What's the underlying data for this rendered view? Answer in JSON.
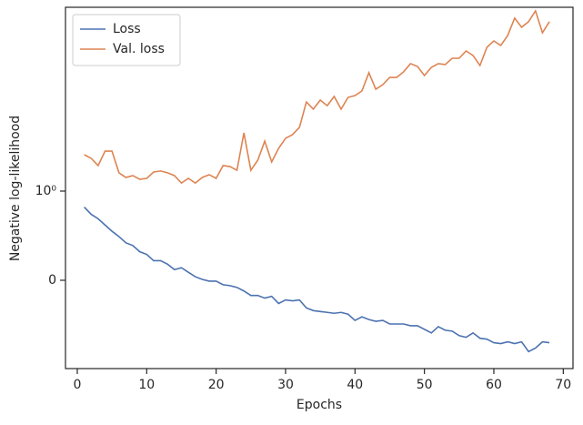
{
  "chart_data": {
    "type": "line",
    "xlabel": "Epochs",
    "ylabel": "Negative log-likelihood",
    "yscale": "symlog",
    "linthresh": 1,
    "x": [
      1,
      2,
      3,
      4,
      5,
      6,
      7,
      8,
      9,
      10,
      11,
      12,
      13,
      14,
      15,
      16,
      17,
      18,
      19,
      20,
      21,
      22,
      23,
      24,
      25,
      26,
      27,
      28,
      29,
      30,
      31,
      32,
      33,
      34,
      35,
      36,
      37,
      38,
      39,
      40,
      41,
      42,
      43,
      44,
      45,
      46,
      47,
      48,
      49,
      50,
      51,
      52,
      53,
      54,
      55,
      56,
      57,
      58,
      59,
      60,
      61,
      62,
      63,
      64,
      65,
      66,
      67,
      68
    ],
    "series": [
      {
        "name": "Loss",
        "color": "#4c72b0",
        "values": [
          0.82,
          0.74,
          0.69,
          0.62,
          0.55,
          0.49,
          0.42,
          0.39,
          0.32,
          0.29,
          0.22,
          0.22,
          0.18,
          0.12,
          0.14,
          0.09,
          0.04,
          0.01,
          -0.01,
          -0.01,
          -0.05,
          -0.06,
          -0.08,
          -0.12,
          -0.17,
          -0.17,
          -0.2,
          -0.18,
          -0.26,
          -0.22,
          -0.23,
          -0.22,
          -0.31,
          -0.34,
          -0.35,
          -0.36,
          -0.37,
          -0.36,
          -0.38,
          -0.45,
          -0.41,
          -0.44,
          -0.46,
          -0.45,
          -0.49,
          -0.49,
          -0.49,
          -0.51,
          -0.51,
          -0.55,
          -0.59,
          -0.52,
          -0.56,
          -0.57,
          -0.62,
          -0.64,
          -0.59,
          -0.65,
          -0.66,
          -0.7,
          -0.71,
          -0.69,
          -0.71,
          -0.69,
          -0.8,
          -0.76,
          -0.69,
          -0.7
        ]
      },
      {
        "name": "Val. loss",
        "color": "#dd8452",
        "values": [
          2.84,
          2.56,
          2.08,
          3.15,
          3.15,
          1.69,
          1.48,
          1.56,
          1.4,
          1.44,
          1.73,
          1.78,
          1.69,
          1.56,
          1.26,
          1.44,
          1.26,
          1.48,
          1.6,
          1.44,
          2.08,
          2.02,
          1.82,
          5.32,
          1.82,
          2.43,
          4.2,
          2.31,
          3.41,
          4.55,
          5.05,
          6.22,
          12.9,
          10.5,
          13.6,
          11.6,
          15.1,
          10.5,
          14.7,
          15.5,
          17.7,
          29.8,
          18.6,
          21.2,
          26.1,
          26.1,
          30.6,
          38.7,
          35.7,
          27.5,
          34.8,
          38.7,
          37.7,
          45.2,
          45.2,
          55.7,
          48.9,
          36.7,
          61.8,
          74.3,
          65.2,
          86.9,
          143,
          110,
          129,
          176,
          93.9,
          129
        ]
      }
    ],
    "xlim": [
      -1.7,
      71.4
    ],
    "xticks": [
      0,
      10,
      20,
      30,
      40,
      50,
      60,
      70
    ],
    "ylim": [
      -0.99,
      195
    ],
    "yticks": [
      0,
      {
        "value": 1,
        "label": "10⁰"
      }
    ],
    "legend": "upper left"
  }
}
